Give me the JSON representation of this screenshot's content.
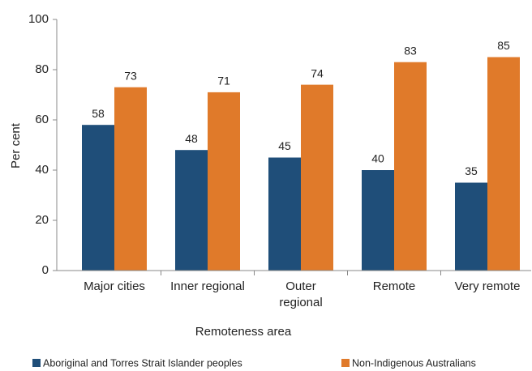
{
  "chart_data": {
    "type": "bar",
    "xlabel": "Remoteness area",
    "ylabel": "Per cent",
    "categories": [
      "Major cities",
      "Inner regional",
      "Outer regional",
      "Remote",
      "Very remote"
    ],
    "series": [
      {
        "name": "Aboriginal and Torres Strait Islander peoples",
        "color": "#1f4e79",
        "values": [
          58,
          48,
          45,
          40,
          35
        ]
      },
      {
        "name": "Non-Indigenous Australians",
        "color": "#e07a2a",
        "values": [
          73,
          71,
          74,
          83,
          85
        ]
      }
    ],
    "ylim": [
      0,
      100
    ],
    "yticks": [
      0,
      20,
      40,
      60,
      80,
      100
    ],
    "grid": false,
    "legend": "bottom"
  }
}
